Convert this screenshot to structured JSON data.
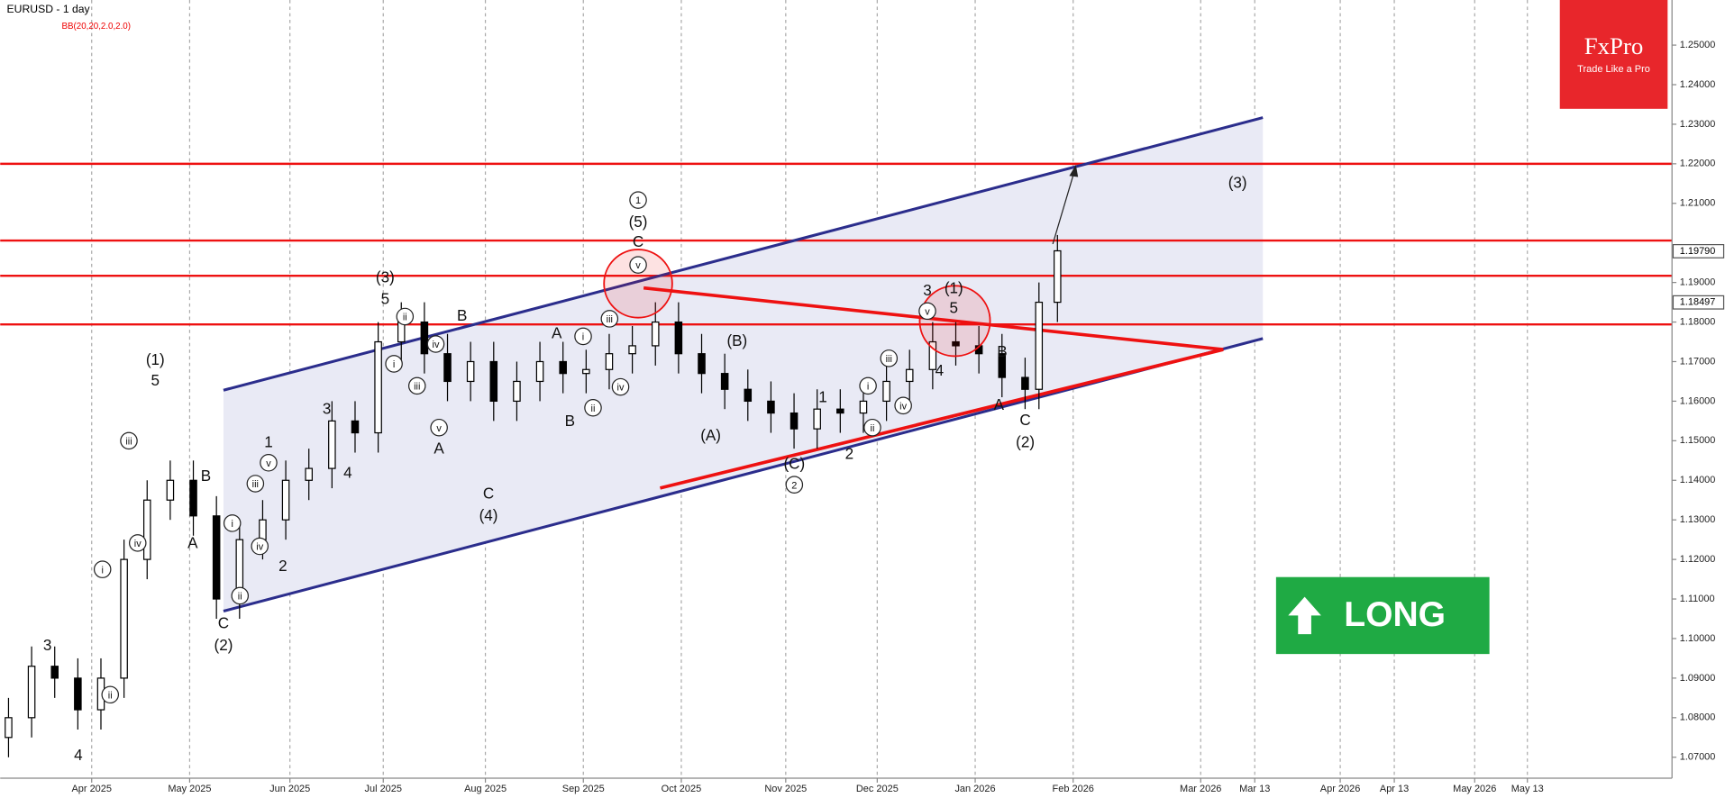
{
  "chart_data": {
    "type": "candlestick",
    "title": "EURUSD - 1 day",
    "indicator": "BB(20,20,2.0,2.0)",
    "x": [
      -18,
      -13,
      -8,
      -3,
      2,
      7,
      12,
      17,
      22,
      27,
      32,
      37,
      42,
      47,
      52,
      57,
      62,
      67,
      72,
      77,
      82,
      87,
      92,
      97,
      102,
      107,
      112,
      117,
      122,
      127,
      132,
      137,
      142,
      147,
      152,
      157,
      162,
      167,
      172,
      177,
      182,
      187,
      192,
      197,
      202,
      205,
      209
    ],
    "open": [
      1.075,
      1.08,
      1.093,
      1.09,
      1.082,
      1.09,
      1.12,
      1.135,
      1.14,
      1.131,
      1.11,
      1.125,
      1.13,
      1.14,
      1.143,
      1.155,
      1.152,
      1.175,
      1.18,
      1.172,
      1.165,
      1.17,
      1.16,
      1.165,
      1.17,
      1.167,
      1.168,
      1.172,
      1.174,
      1.18,
      1.172,
      1.167,
      1.163,
      1.16,
      1.157,
      1.153,
      1.158,
      1.157,
      1.16,
      1.165,
      1.168,
      1.175,
      1.174,
      1.172,
      1.166,
      1.163,
      1.185
    ],
    "high": [
      1.085,
      1.098,
      1.098,
      1.095,
      1.095,
      1.125,
      1.14,
      1.145,
      1.145,
      1.136,
      1.13,
      1.135,
      1.145,
      1.148,
      1.16,
      1.16,
      1.18,
      1.185,
      1.185,
      1.177,
      1.175,
      1.175,
      1.17,
      1.175,
      1.175,
      1.173,
      1.177,
      1.179,
      1.185,
      1.185,
      1.177,
      1.172,
      1.168,
      1.165,
      1.162,
      1.163,
      1.163,
      1.165,
      1.17,
      1.173,
      1.18,
      1.18,
      1.179,
      1.177,
      1.171,
      1.19,
      1.202
    ],
    "low": [
      1.07,
      1.075,
      1.085,
      1.077,
      1.077,
      1.085,
      1.115,
      1.13,
      1.126,
      1.105,
      1.105,
      1.12,
      1.125,
      1.135,
      1.138,
      1.147,
      1.147,
      1.17,
      1.167,
      1.16,
      1.16,
      1.155,
      1.155,
      1.16,
      1.162,
      1.162,
      1.163,
      1.167,
      1.169,
      1.167,
      1.162,
      1.158,
      1.155,
      1.152,
      1.148,
      1.148,
      1.152,
      1.152,
      1.155,
      1.16,
      1.163,
      1.169,
      1.167,
      1.161,
      1.158,
      1.158,
      1.18
    ],
    "close": [
      1.08,
      1.093,
      1.09,
      1.082,
      1.09,
      1.12,
      1.135,
      1.14,
      1.131,
      1.11,
      1.125,
      1.13,
      1.14,
      1.143,
      1.155,
      1.152,
      1.175,
      1.18,
      1.172,
      1.165,
      1.17,
      1.16,
      1.165,
      1.17,
      1.167,
      1.168,
      1.172,
      1.174,
      1.18,
      1.172,
      1.167,
      1.163,
      1.16,
      1.157,
      1.153,
      1.158,
      1.157,
      1.16,
      1.165,
      1.168,
      1.175,
      1.174,
      1.172,
      1.166,
      1.163,
      1.185,
      1.198
    ],
    "ylim": [
      1.0597,
      1.2614
    ],
    "yticks": [
      {
        "value": 1.07,
        "label": "1.07000"
      },
      {
        "value": 1.08,
        "label": "1.08000"
      },
      {
        "value": 1.09,
        "label": "1.09000"
      },
      {
        "value": 1.1,
        "label": "1.10000"
      },
      {
        "value": 1.11,
        "label": "1.11000"
      },
      {
        "value": 1.12,
        "label": "1.12000"
      },
      {
        "value": 1.13,
        "label": "1.13000"
      },
      {
        "value": 1.14,
        "label": "1.14000"
      },
      {
        "value": 1.15,
        "label": "1.15000"
      },
      {
        "value": 1.16,
        "label": "1.16000"
      },
      {
        "value": 1.17,
        "label": "1.17000"
      },
      {
        "value": 1.18,
        "label": "1.18000"
      },
      {
        "value": 1.19,
        "label": "1.19000"
      },
      {
        "value": 1.21,
        "label": "1.21000"
      },
      {
        "value": 1.22,
        "label": "1.22000"
      },
      {
        "value": 1.23,
        "label": "1.23000"
      },
      {
        "value": 1.24,
        "label": "1.24000"
      },
      {
        "value": 1.25,
        "label": "1.25000"
      }
    ],
    "xlim": [
      -19.8,
      342
    ],
    "xticks": [
      {
        "value": 0,
        "label": "Apr 2025"
      },
      {
        "value": 21.2,
        "label": "May 2025"
      },
      {
        "value": 42.9,
        "label": "Jun 2025"
      },
      {
        "value": 63.1,
        "label": "Jul 2025"
      },
      {
        "value": 85.2,
        "label": "Aug 2025"
      },
      {
        "value": 106.4,
        "label": "Sep 2025"
      },
      {
        "value": 127.6,
        "label": "Oct 2025"
      },
      {
        "value": 150.2,
        "label": "Nov 2025"
      },
      {
        "value": 170,
        "label": "Dec 2025"
      },
      {
        "value": 191.2,
        "label": "Jan 2026"
      },
      {
        "value": 212.4,
        "label": "Feb 2026"
      },
      {
        "value": 240,
        "label": "Mar 2026"
      },
      {
        "value": 251.7,
        "label": "Mar 13"
      },
      {
        "value": 270.2,
        "label": "Apr 2026"
      },
      {
        "value": 281.9,
        "label": "Apr 13"
      },
      {
        "value": 299.3,
        "label": "May 2026"
      },
      {
        "value": 310.7,
        "label": "May 13"
      }
    ],
    "levels": [
      1.22,
      1.2006,
      1.1917,
      1.1794
    ],
    "level_color": "#ee1111",
    "price_markers": [
      {
        "value": 1.1979,
        "label": "1.19790"
      },
      {
        "value": 1.18497,
        "label": "1.18497"
      }
    ],
    "annotations": [
      "(1)",
      "5",
      "iii",
      "iv",
      "i",
      "ii",
      "3",
      "4",
      "B",
      "A",
      "i",
      "iii",
      "v",
      "iv",
      "ii",
      "C",
      "(2)",
      "1",
      "2",
      "3",
      "4",
      "(3)",
      "5",
      "ii",
      "i",
      "iii",
      "iv",
      "v",
      "A",
      "B",
      "C",
      "(4)",
      "1",
      "(5)",
      "C",
      "v",
      "A",
      "B",
      "i",
      "ii",
      "iii",
      "iv",
      "(B)",
      "(A)",
      "(C)",
      "2",
      "1",
      "2",
      "i",
      "ii",
      "iii",
      "iv",
      "3",
      "v",
      "(1)",
      "5",
      "4",
      "B",
      "A",
      "C",
      "(2)",
      "(3)"
    ],
    "logo": {
      "brand": "FxPro",
      "tagline": "Trade Like a Pro"
    },
    "signal": "LONG"
  }
}
